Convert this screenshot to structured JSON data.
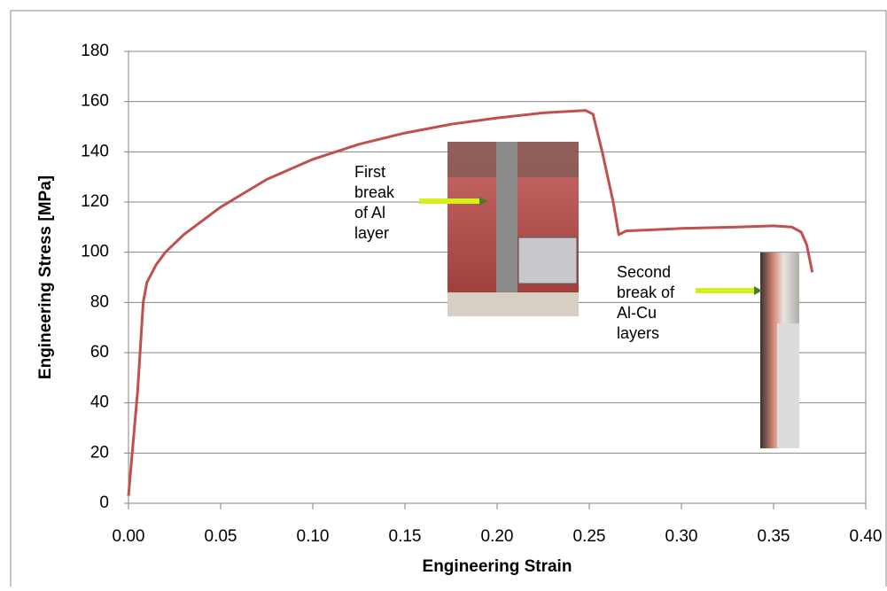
{
  "chart_data": {
    "type": "line",
    "xlabel": "Engineering Strain",
    "ylabel": "Engineering Stress  [MPa]",
    "xlim": [
      0,
      0.4
    ],
    "ylim": [
      0,
      180
    ],
    "xticks": [
      {
        "value": 0,
        "label": "0.00"
      },
      {
        "value": 0.05,
        "label": "0.05"
      },
      {
        "value": 0.1,
        "label": "0.10"
      },
      {
        "value": 0.15,
        "label": "0.15"
      },
      {
        "value": 0.2,
        "label": "0.20"
      },
      {
        "value": 0.25,
        "label": "0.25"
      },
      {
        "value": 0.3,
        "label": "0.30"
      },
      {
        "value": 0.35,
        "label": "0.35"
      },
      {
        "value": 0.4,
        "label": "0.40"
      }
    ],
    "yticks": [
      0,
      20,
      40,
      60,
      80,
      100,
      120,
      140,
      160,
      180
    ],
    "grid": true,
    "series": [
      {
        "color": "#c0504d",
        "x": [
          0,
          0.002,
          0.005,
          0.008,
          0.01,
          0.015,
          0.02,
          0.03,
          0.05,
          0.075,
          0.1,
          0.125,
          0.15,
          0.175,
          0.2,
          0.225,
          0.248,
          0.252,
          0.257,
          0.263,
          0.266,
          0.27,
          0.3,
          0.33,
          0.35,
          0.36,
          0.365,
          0.368,
          0.371
        ],
        "values": [
          3,
          20,
          45,
          80,
          88,
          95,
          100,
          107,
          118,
          129,
          137,
          143,
          147.5,
          151,
          153.5,
          155.5,
          156.5,
          155,
          140,
          120,
          107,
          108.5,
          109.5,
          110,
          110.5,
          110,
          108,
          103,
          92
        ]
      }
    ],
    "annotations": [
      {
        "lines": [
          "First",
          "break",
          "of Al",
          "layer"
        ]
      },
      {
        "lines": [
          "Second",
          "break of",
          "Al-Cu",
          "layers"
        ]
      }
    ]
  }
}
